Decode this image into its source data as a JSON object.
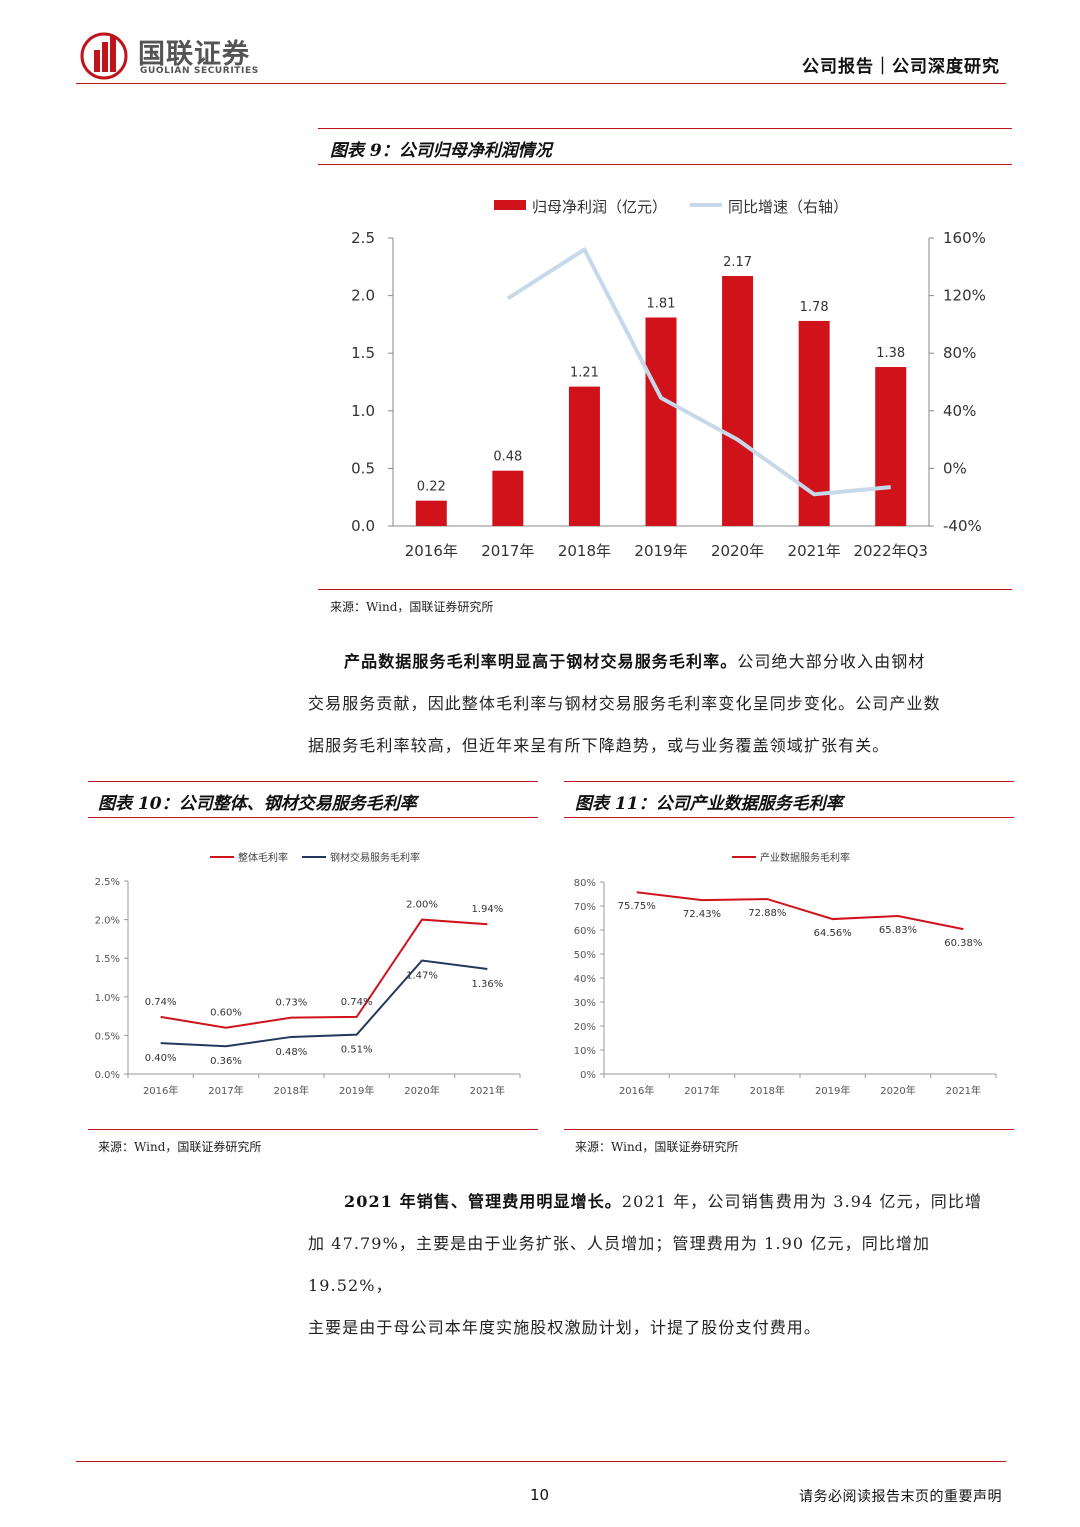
{
  "header": {
    "logo_cn": "国联证券",
    "logo_en": "GUOLIAN SECURITIES",
    "report_type": "公司报告｜公司深度研究"
  },
  "figure9": {
    "title": "图表 9：公司归母净利润情况",
    "source": "来源：Wind，国联证券研究所"
  },
  "paragraph1": {
    "lead": "产品数据服务毛利率明显高于钢材交易服务毛利率。",
    "line1_rest": "公司绝大部分收入由钢材",
    "line2": "交易服务贡献，因此整体毛利率与钢材交易服务毛利率变化呈同步变化。公司产业数",
    "line3": "据服务毛利率较高，但近年来呈有所下降趋势，或与业务覆盖领域扩张有关。"
  },
  "figure10": {
    "title": "图表 10：公司整体、钢材交易服务毛利率",
    "source": "来源：Wind，国联证券研究所"
  },
  "figure11": {
    "title": "图表 11：公司产业数据服务毛利率",
    "source": "来源：Wind，国联证券研究所"
  },
  "paragraph2": {
    "lead": "2021 年销售、管理费用明显增长。",
    "line1_rest": "2021 年，公司销售费用为 3.94 亿元，同比增",
    "line2": "加 47.79%，主要是由于业务扩张、人员增加；管理费用为 1.90 亿元，同比增加 19.52%，",
    "line3": "主要是由于母公司本年度实施股权激励计划，计提了股份支付费用。"
  },
  "footer": {
    "page_number": "10",
    "disclaimer": "请务必阅读报告末页的重要声明"
  },
  "colors": {
    "brand_red": "#c0141c",
    "bar_red": "#d0121b",
    "line_light_blue": "#c5d9ea",
    "line_navy": "#24385f"
  },
  "chart_data": [
    {
      "type": "bar",
      "categories": [
        "2016年",
        "2017年",
        "2018年",
        "2019年",
        "2020年",
        "2021年",
        "2022年Q3"
      ],
      "series": [
        {
          "name": "归母净利润（亿元）",
          "type": "bar",
          "axis": "left",
          "values": [
            0.22,
            0.48,
            1.21,
            1.81,
            2.17,
            1.78,
            1.38
          ],
          "labels": [
            "0.22",
            "0.48",
            "1.21",
            "1.81",
            "2.17",
            "1.78",
            "1.38"
          ]
        },
        {
          "name": "同比增速（右轴）",
          "type": "line",
          "axis": "right",
          "values": [
            null,
            118,
            152,
            49,
            20,
            -18,
            -13
          ]
        }
      ],
      "y_left": {
        "lim": [
          0,
          2.5
        ],
        "ticks": [
          "0.0",
          "0.5",
          "1.0",
          "1.5",
          "2.0",
          "2.5"
        ]
      },
      "y_right": {
        "lim": [
          -40,
          160
        ],
        "ticks": [
          "-40%",
          "0%",
          "40%",
          "80%",
          "120%",
          "160%"
        ]
      },
      "legend_position": "top"
    },
    {
      "type": "line",
      "categories": [
        "2016年",
        "2017年",
        "2018年",
        "2019年",
        "2020年",
        "2021年"
      ],
      "series": [
        {
          "name": "整体毛利率",
          "values": [
            0.74,
            0.6,
            0.73,
            0.74,
            2.0,
            1.94
          ],
          "labels": [
            "0.74%",
            "0.60%",
            "0.73%",
            "0.74%",
            "2.00%",
            "1.94%"
          ]
        },
        {
          "name": "钢材交易服务毛利率",
          "values": [
            0.4,
            0.36,
            0.48,
            0.51,
            1.47,
            1.36
          ],
          "labels": [
            "0.40%",
            "0.36%",
            "0.48%",
            "0.51%",
            "1.47%",
            "1.36%"
          ]
        }
      ],
      "y": {
        "lim": [
          0,
          2.5
        ],
        "ticks": [
          "0.0%",
          "0.5%",
          "1.0%",
          "1.5%",
          "2.0%",
          "2.5%"
        ]
      },
      "legend_position": "top"
    },
    {
      "type": "line",
      "categories": [
        "2016年",
        "2017年",
        "2018年",
        "2019年",
        "2020年",
        "2021年"
      ],
      "series": [
        {
          "name": "产业数据服务毛利率",
          "values": [
            75.75,
            72.43,
            72.88,
            64.56,
            65.83,
            60.38
          ],
          "labels": [
            "75.75%",
            "72.43%",
            "72.88%",
            "64.56%",
            "65.83%",
            "60.38%"
          ]
        }
      ],
      "y": {
        "lim": [
          0,
          80
        ],
        "ticks": [
          "0%",
          "10%",
          "20%",
          "30%",
          "40%",
          "50%",
          "60%",
          "70%",
          "80%"
        ]
      },
      "legend_position": "top"
    }
  ]
}
